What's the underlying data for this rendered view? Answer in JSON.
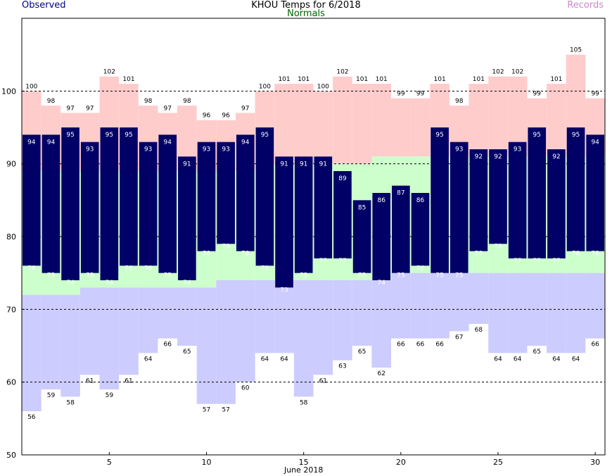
{
  "header": {
    "left": "Observed",
    "center_title": "KHOU Temps for 6/2018",
    "center_sub": "Normals",
    "right": "Records"
  },
  "colors": {
    "observed": "#000066",
    "normal_band": "#ccffcc",
    "record_high": "#ffcccc",
    "record_low": "#ccccff",
    "observed_label": "#000080",
    "normals_label": "#006600",
    "records_label": "#cc88cc"
  },
  "chart_data": {
    "type": "bar",
    "title": "KHOU Temps for 6/2018",
    "xlabel": "June 2018",
    "ylabel": "",
    "xlim": [
      1,
      30
    ],
    "ylim": [
      50,
      110
    ],
    "x_ticks": [
      5,
      10,
      15,
      20,
      25,
      30
    ],
    "y_ticks": [
      50,
      60,
      70,
      80,
      90,
      100
    ],
    "grid": "dashed at 60, 70, 80, 90, 100",
    "days": [
      1,
      2,
      3,
      4,
      5,
      6,
      7,
      8,
      9,
      10,
      11,
      12,
      13,
      14,
      15,
      16,
      17,
      18,
      19,
      20,
      21,
      22,
      23,
      24,
      25,
      26,
      27,
      28,
      29,
      30
    ],
    "series": [
      {
        "name": "Observed",
        "kind": "high",
        "values": [
          94,
          94,
          95,
          93,
          95,
          95,
          93,
          94,
          91,
          93,
          93,
          94,
          95,
          91,
          91,
          91,
          89,
          85,
          86,
          87,
          86,
          95,
          93,
          92,
          92,
          93,
          95,
          92,
          95,
          94
        ]
      },
      {
        "name": "Observed",
        "kind": "low",
        "values": [
          76,
          75,
          74,
          75,
          74,
          76,
          76,
          75,
          74,
          78,
          79,
          78,
          76,
          73,
          75,
          77,
          77,
          75,
          74,
          75,
          76,
          75,
          75,
          78,
          79,
          77,
          77,
          77,
          78,
          78
        ]
      },
      {
        "name": "Normals",
        "kind": "normal_high",
        "values": [
          89,
          89,
          89,
          89,
          89,
          89,
          89,
          89,
          89,
          89,
          89,
          89,
          90,
          90,
          90,
          90,
          90,
          90,
          91,
          91,
          91,
          91,
          91,
          91,
          91,
          91,
          91,
          91,
          91,
          91
        ]
      },
      {
        "name": "Normals",
        "kind": "normal_low",
        "values": [
          72,
          72,
          72,
          73,
          73,
          73,
          73,
          73,
          73,
          73,
          74,
          74,
          74,
          74,
          74,
          74,
          74,
          74,
          74,
          75,
          75,
          75,
          75,
          75,
          75,
          75,
          75,
          75,
          75,
          75
        ]
      },
      {
        "name": "Records",
        "kind": "record_high",
        "values": [
          100,
          98,
          97,
          97,
          102,
          101,
          98,
          97,
          98,
          96,
          96,
          97,
          100,
          101,
          101,
          100,
          102,
          101,
          101,
          99,
          99,
          101,
          98,
          101,
          102,
          102,
          99,
          101,
          105,
          99
        ]
      },
      {
        "name": "Records",
        "kind": "record_low",
        "values": [
          56,
          59,
          58,
          61,
          59,
          61,
          64,
          66,
          65,
          57,
          57,
          60,
          64,
          64,
          58,
          61,
          63,
          65,
          62,
          66,
          66,
          66,
          67,
          68,
          64,
          64,
          65,
          64,
          64,
          66
        ]
      }
    ]
  }
}
